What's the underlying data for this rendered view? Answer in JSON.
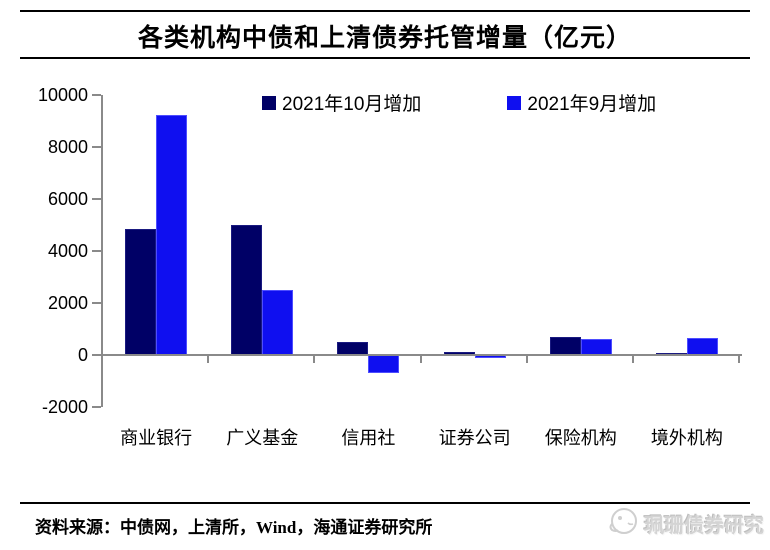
{
  "title": "各类机构中债和上清债券托管增量（亿元）",
  "legend": [
    {
      "label": "2021年10月增加",
      "color": "#000066"
    },
    {
      "label": "2021年9月增加",
      "color": "#0f0ff0"
    }
  ],
  "chart_data": {
    "type": "bar",
    "title": "各类机构中债和上清债券托管增量（亿元）",
    "categories": [
      "商业银行",
      "广义基金",
      "信用社",
      "证券公司",
      "保险机构",
      "境外机构"
    ],
    "series": [
      {
        "name": "2021年10月增加",
        "color": "#000066",
        "border": "#1a1a80",
        "values": [
          4850,
          5000,
          500,
          100,
          690,
          70
        ]
      },
      {
        "name": "2021年9月增加",
        "color": "#0f0ff0",
        "border": "#4d4dff",
        "values": [
          9250,
          2500,
          -700,
          -130,
          620,
          640
        ]
      }
    ],
    "ylim": [
      -2000,
      10000
    ],
    "yticks": [
      10000,
      8000,
      6000,
      4000,
      2000,
      0,
      -2000
    ],
    "grid": false,
    "legend_position": "top",
    "axis_color": "#8a8a8a"
  },
  "footer": {
    "source": "资料来源：中债网，上清所，Wind，海通证券研究所",
    "watermark": "珮珊债券研究"
  }
}
